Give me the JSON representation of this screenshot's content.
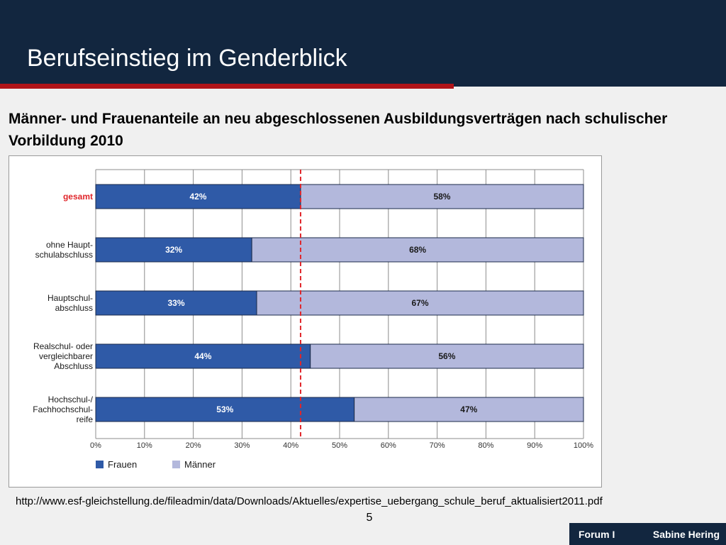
{
  "slide": {
    "title": "Berufseinstieg im Genderblick",
    "subtitle": "Männer- und Frauenanteile an neu abgeschlossenen Ausbildungsverträgen nach schulischer Vorbildung 2010",
    "source": "http://www.esf-gleichstellung.de/fileadmin/data/Downloads/Aktuelles/expertise_uebergang_schule_beruf_aktualisiert2011.pdf",
    "page_number": "5",
    "footer_left": "Forum I",
    "footer_right": "Sabine Hering"
  },
  "colors": {
    "header_bg": "#12263f",
    "accent_red": "#b01419",
    "frauen": "#2f5aa7",
    "maenner": "#b3b8dc",
    "highlight_label": "#e0262b"
  },
  "chart_data": {
    "type": "bar",
    "orientation": "horizontal",
    "stacked": true,
    "categories": [
      {
        "label": [
          "gesamt"
        ],
        "highlight": true
      },
      {
        "label": [
          "ohne Haupt-",
          "schulabschluss"
        ],
        "highlight": false
      },
      {
        "label": [
          "Hauptschul-",
          "abschluss"
        ],
        "highlight": false
      },
      {
        "label": [
          "Realschul- oder",
          "vergleichbarer",
          "Abschluss"
        ],
        "highlight": false
      },
      {
        "label": [
          "Hochschul-/",
          "Fachhochschul-",
          "reife"
        ],
        "highlight": false
      }
    ],
    "series": [
      {
        "name": "Frauen",
        "values": [
          42,
          32,
          33,
          44,
          53
        ],
        "labels": [
          "42%",
          "32%",
          "33%",
          "44%",
          "53%"
        ]
      },
      {
        "name": "Männer",
        "values": [
          58,
          68,
          67,
          56,
          47
        ],
        "labels": [
          "58%",
          "68%",
          "67%",
          "56%",
          "47%"
        ]
      }
    ],
    "x_ticks": [
      "0%",
      "10%",
      "20%",
      "30%",
      "40%",
      "50%",
      "60%",
      "70%",
      "80%",
      "90%",
      "100%"
    ],
    "xlim": [
      0,
      100
    ],
    "reference_line": 42,
    "grid": true,
    "legend_position": "bottom-left"
  }
}
